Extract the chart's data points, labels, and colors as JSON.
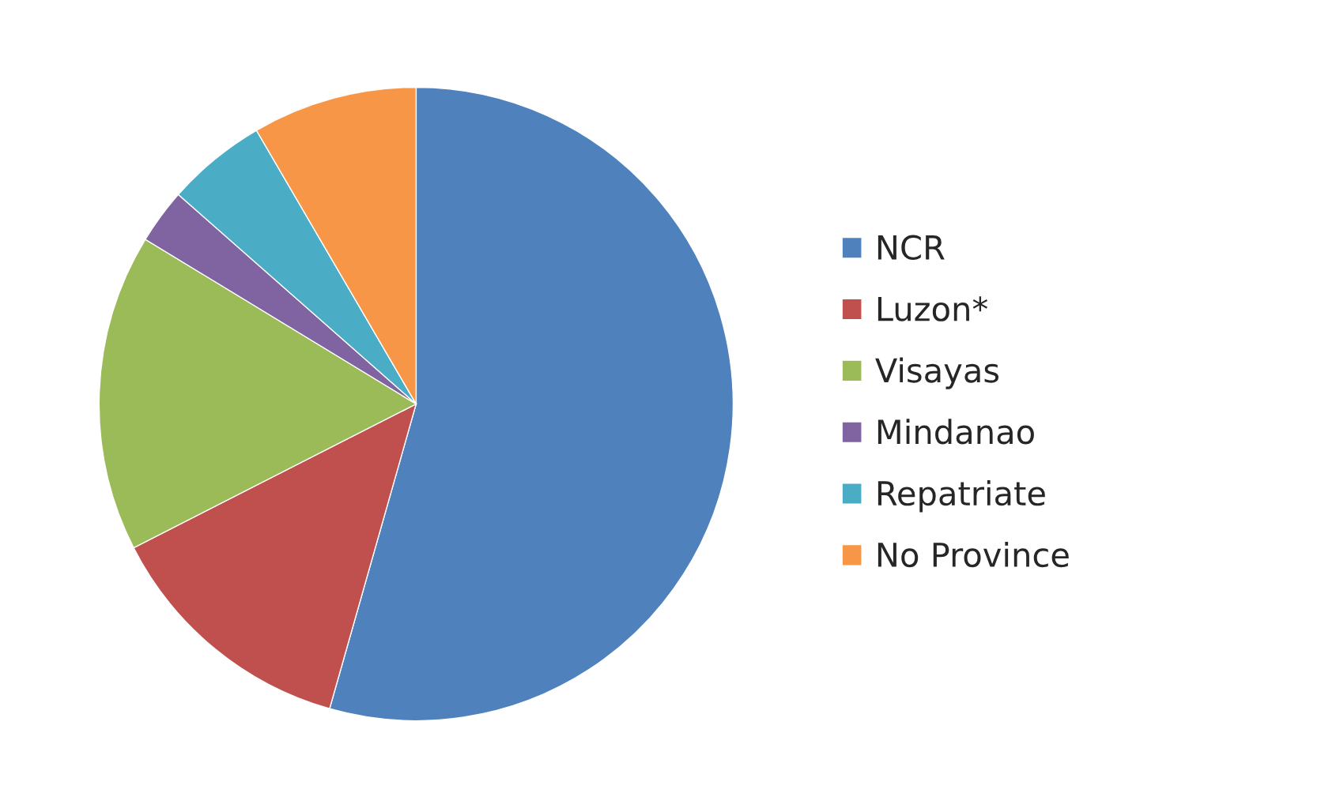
{
  "chart_data": {
    "type": "pie",
    "categories": [
      "NCR",
      "Luzon*",
      "Visayas",
      "Mindanao",
      "Repatriate",
      "No Province"
    ],
    "values": [
      54.4,
      13.1,
      16.2,
      2.8,
      5.1,
      8.4
    ],
    "colors": [
      "#4f81bd",
      "#c0504d",
      "#9bbb59",
      "#8064a2",
      "#4bacc6",
      "#f79646"
    ],
    "legend": "right"
  }
}
